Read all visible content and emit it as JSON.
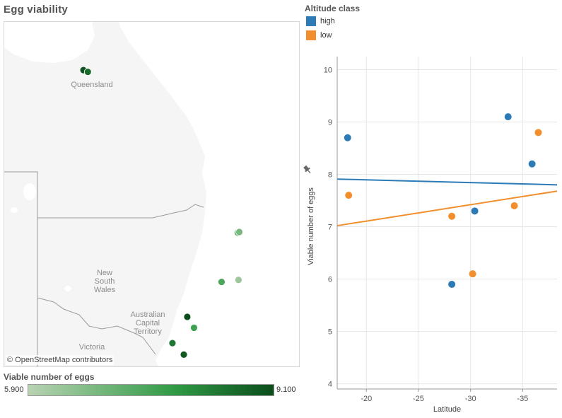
{
  "title": "Egg viability",
  "map": {
    "attribution": "© OpenStreetMap contributors",
    "labels": [
      "Queensland",
      "New",
      "South",
      "Wales",
      "Australian",
      "Capital",
      "Territory",
      "Victoria"
    ],
    "sites": [
      {
        "lon": 145.41,
        "lat": -16.37,
        "value": 9.0
      },
      {
        "lon": 145.64,
        "lat": -16.5,
        "value": 8.6
      },
      {
        "lon": 153.42,
        "lat": -28.25,
        "value": 7.2
      },
      {
        "lon": 153.5,
        "lat": -28.2,
        "value": 6.8
      },
      {
        "lon": 152.58,
        "lat": -31.85,
        "value": 7.4
      },
      {
        "lon": 153.46,
        "lat": -31.7,
        "value": 6.3
      },
      {
        "lon": 150.8,
        "lat": -34.4,
        "value": 9.1
      },
      {
        "lon": 151.15,
        "lat": -35.2,
        "value": 7.6
      },
      {
        "lon": 150.03,
        "lat": -36.32,
        "value": 8.4
      },
      {
        "lon": 150.62,
        "lat": -37.16,
        "value": 8.9
      }
    ]
  },
  "color_legend": {
    "title": "Viable number of eggs",
    "min_label": "5.900",
    "max_label": "9.100"
  },
  "altitude_legend": {
    "title": "Altitude class",
    "items": [
      {
        "label": "high",
        "color": "#2c7bb6"
      },
      {
        "label": "low",
        "color": "#f28e2b"
      }
    ]
  },
  "chart_data": {
    "type": "scatter",
    "xlabel": "Latitude",
    "ylabel": "Viable number of eggs",
    "xlim": [
      -17.2,
      -38.3
    ],
    "ylim": [
      3.9,
      10.25
    ],
    "xticks": [
      -20,
      -25,
      -30,
      -35
    ],
    "xtick_labels": [
      "-20",
      "-25",
      "-30",
      "-35"
    ],
    "yticks": [
      4,
      5,
      6,
      7,
      8,
      9,
      10
    ],
    "ytick_labels": [
      "4",
      "5",
      "6",
      "7",
      "8",
      "9",
      "10"
    ],
    "series": [
      {
        "name": "high",
        "color": "#2c7bb6",
        "points": [
          [
            -18.2,
            8.7
          ],
          [
            -28.2,
            5.9
          ],
          [
            -30.4,
            7.3
          ],
          [
            -33.6,
            9.1
          ],
          [
            -35.9,
            8.2
          ]
        ],
        "trend": [
          [
            -17.2,
            7.91
          ],
          [
            -38.3,
            7.8
          ]
        ]
      },
      {
        "name": "low",
        "color": "#f28e2b",
        "points": [
          [
            -18.3,
            7.6
          ],
          [
            -28.2,
            7.2
          ],
          [
            -30.2,
            6.1
          ],
          [
            -34.2,
            7.4
          ],
          [
            -36.5,
            8.8
          ]
        ],
        "trend": [
          [
            -17.2,
            7.02
          ],
          [
            -38.3,
            7.68
          ]
        ]
      }
    ],
    "grid": true
  }
}
